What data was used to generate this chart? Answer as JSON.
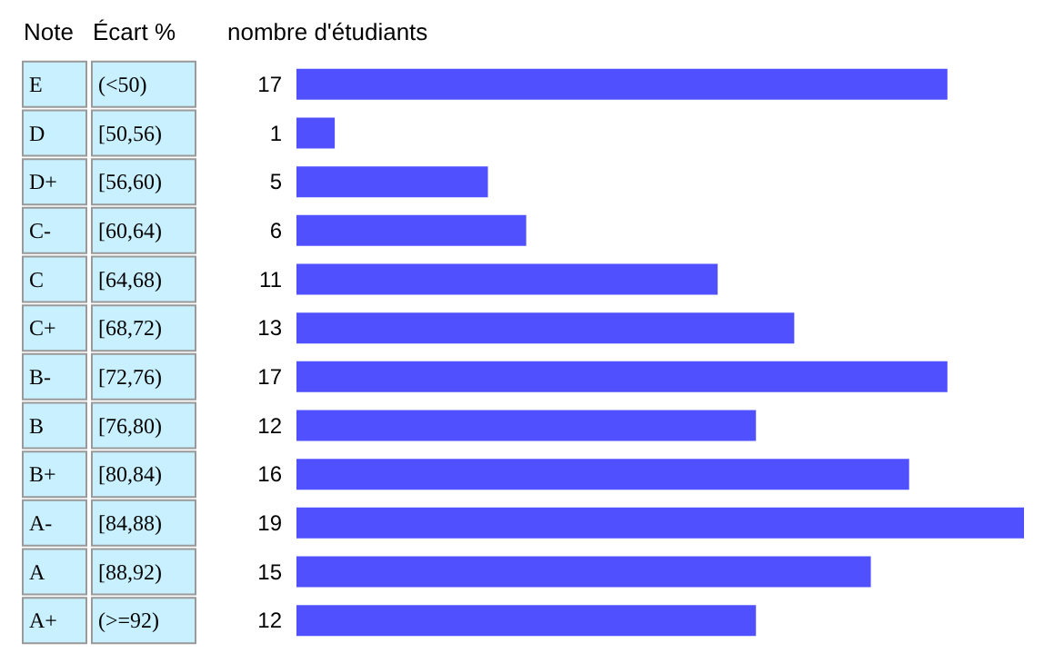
{
  "chart_data": {
    "type": "bar",
    "orientation": "horizontal",
    "ylabel": "Note",
    "y2label": "Écart %",
    "xlabel": "nombre d'étudiants",
    "categories": [
      "E",
      "D",
      "D+",
      "C-",
      "C",
      "C+",
      "B-",
      "B",
      "B+",
      "A-",
      "A",
      "A+"
    ],
    "y2_categories": [
      "(<50)",
      "[50,56)",
      "[56,60)",
      "[60,64)",
      "[64,68)",
      "[68,72)",
      "[72,76)",
      "[76,80)",
      "[80,84)",
      "[84,88)",
      "[88,92)",
      "(>=92)"
    ],
    "values": [
      17,
      1,
      5,
      6,
      11,
      13,
      17,
      12,
      16,
      19,
      15,
      12
    ],
    "color": "#5050ff",
    "data_labels": true
  }
}
